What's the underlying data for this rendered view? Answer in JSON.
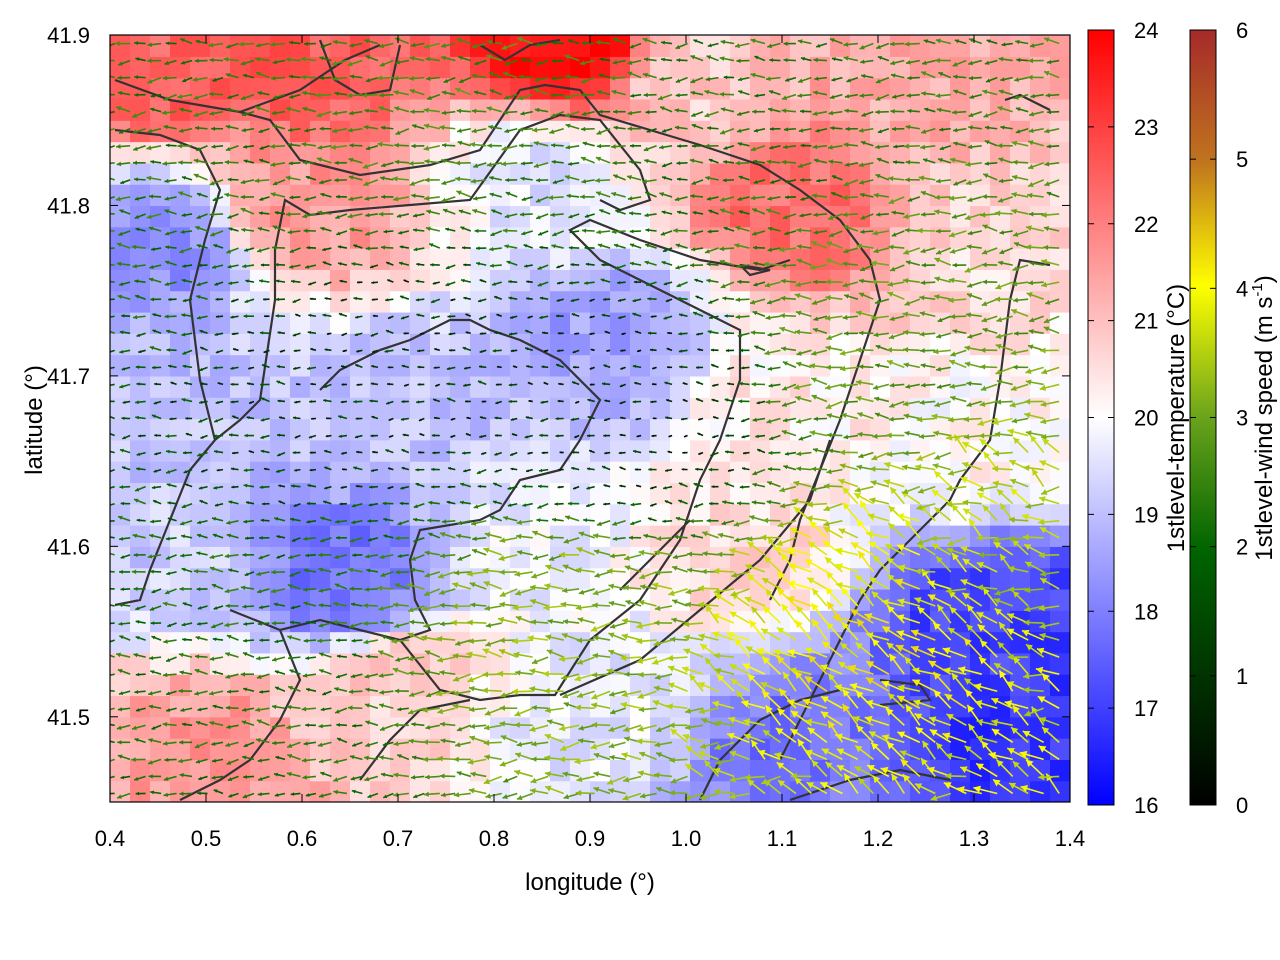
{
  "chart_data": {
    "type": "heatmap",
    "title": "",
    "xlabel": "longitude (°)",
    "ylabel": "latitude (°)",
    "xlim": [
      0.4,
      1.4
    ],
    "ylim": [
      41.45,
      41.9
    ],
    "x_ticks": [
      "0.4",
      "0.5",
      "0.6",
      "0.7",
      "0.8",
      "0.9",
      "1.0",
      "1.1",
      "1.2",
      "1.3",
      "1.4"
    ],
    "y_ticks": [
      "41.5",
      "41.6",
      "41.7",
      "41.8",
      "41.9"
    ],
    "grid": false,
    "temperature": {
      "label": "1stlevel-temperature (°C)",
      "range": [
        16,
        24
      ],
      "ticks": [
        "16",
        "17",
        "18",
        "19",
        "20",
        "21",
        "22",
        "23",
        "24"
      ],
      "colors": [
        "#0000ff",
        "#ffffff",
        "#ff0000"
      ],
      "field_samples": [
        {
          "x": 0.45,
          "y": 41.88,
          "t": 22.5
        },
        {
          "x": 0.6,
          "y": 41.88,
          "t": 22.6
        },
        {
          "x": 0.88,
          "y": 41.89,
          "t": 23.8
        },
        {
          "x": 1.0,
          "y": 41.87,
          "t": 20.8
        },
        {
          "x": 1.25,
          "y": 41.87,
          "t": 21.3
        },
        {
          "x": 0.45,
          "y": 41.78,
          "t": 18.2
        },
        {
          "x": 0.6,
          "y": 41.8,
          "t": 21.6
        },
        {
          "x": 0.85,
          "y": 41.82,
          "t": 19.6
        },
        {
          "x": 1.12,
          "y": 41.8,
          "t": 22.3
        },
        {
          "x": 1.3,
          "y": 41.78,
          "t": 20.6
        },
        {
          "x": 0.45,
          "y": 41.68,
          "t": 19.0
        },
        {
          "x": 0.7,
          "y": 41.68,
          "t": 19.0
        },
        {
          "x": 0.92,
          "y": 41.72,
          "t": 18.5
        },
        {
          "x": 1.1,
          "y": 41.68,
          "t": 20.3
        },
        {
          "x": 1.3,
          "y": 41.66,
          "t": 20.1
        },
        {
          "x": 0.45,
          "y": 41.6,
          "t": 19.2
        },
        {
          "x": 0.65,
          "y": 41.58,
          "t": 17.8
        },
        {
          "x": 0.85,
          "y": 41.6,
          "t": 19.8
        },
        {
          "x": 1.05,
          "y": 41.6,
          "t": 20.6
        },
        {
          "x": 1.32,
          "y": 41.56,
          "t": 17.0
        },
        {
          "x": 0.5,
          "y": 41.48,
          "t": 21.6
        },
        {
          "x": 0.7,
          "y": 41.52,
          "t": 20.8
        },
        {
          "x": 0.9,
          "y": 41.5,
          "t": 19.6
        },
        {
          "x": 1.12,
          "y": 41.48,
          "t": 17.8
        },
        {
          "x": 1.35,
          "y": 41.48,
          "t": 16.8
        }
      ]
    },
    "wind": {
      "label_prefix": "1stlevel-wind speed (m s",
      "label_exp": "-1",
      "label_suffix": ")",
      "range": [
        0,
        6
      ],
      "ticks": [
        "0",
        "1",
        "2",
        "3",
        "4",
        "5",
        "6"
      ],
      "colors": [
        "#000000",
        "#006400",
        "#6aa31c",
        "#ffff00",
        "#c0741e",
        "#a52a2a"
      ],
      "predominant_direction": "from east",
      "speed_samples": [
        {
          "x": 0.5,
          "y": 41.85,
          "s": 1.6
        },
        {
          "x": 0.75,
          "y": 41.85,
          "s": 1.9
        },
        {
          "x": 1.05,
          "y": 41.85,
          "s": 1.6
        },
        {
          "x": 0.7,
          "y": 41.7,
          "s": 0.6
        },
        {
          "x": 0.95,
          "y": 41.68,
          "s": 0.5
        },
        {
          "x": 1.2,
          "y": 41.72,
          "s": 2.2
        },
        {
          "x": 0.88,
          "y": 41.55,
          "s": 2.6
        },
        {
          "x": 1.2,
          "y": 41.55,
          "s": 3.6
        },
        {
          "x": 1.35,
          "y": 41.6,
          "s": 3.0
        },
        {
          "x": 0.55,
          "y": 41.5,
          "s": 1.5
        }
      ]
    },
    "coastline_color": "#333333"
  }
}
